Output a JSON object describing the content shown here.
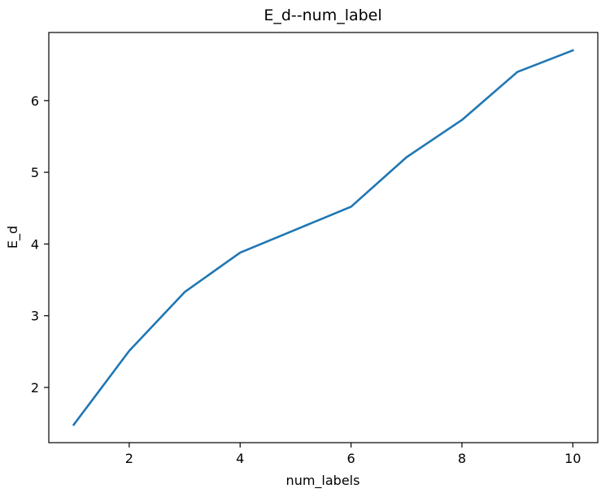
{
  "chart_data": {
    "type": "line",
    "title": "E_d--num_label",
    "xlabel": "num_labels",
    "ylabel": "E_d",
    "xlim": [
      0.55,
      10.45
    ],
    "ylim": [
      1.23,
      6.95
    ],
    "xticks": [
      2,
      4,
      6,
      8,
      10
    ],
    "yticks": [
      2,
      3,
      4,
      5,
      6
    ],
    "grid": false,
    "series": [
      {
        "color": "#1f77b4",
        "x": [
          1,
          2,
          3,
          4,
          5,
          6,
          7,
          8,
          9,
          10
        ],
        "y": [
          1.48,
          2.51,
          3.33,
          3.88,
          4.2,
          4.52,
          5.21,
          5.73,
          6.4,
          6.7
        ]
      }
    ]
  }
}
